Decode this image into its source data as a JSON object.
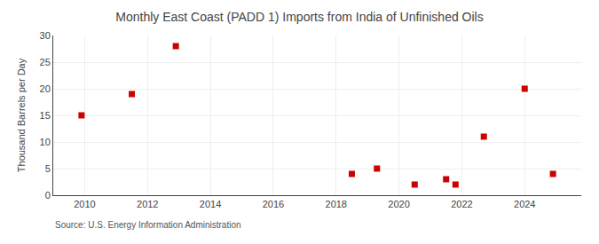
{
  "chart_data": {
    "type": "scatter",
    "title": "Monthly East Coast (PADD 1) Imports from India of Unfinished Oils",
    "ylabel": "Thousand Barrels per Day",
    "source": "Source: U.S. Energy Information Administration",
    "x": [
      2009.9,
      2011.5,
      2012.9,
      2018.5,
      2019.3,
      2020.5,
      2021.5,
      2021.8,
      2022.7,
      2024.0,
      2024.9
    ],
    "values": [
      15,
      19,
      28,
      4,
      5,
      2,
      3,
      2,
      11,
      20,
      4
    ],
    "color": "#cc0000",
    "marker": "square",
    "xlim": [
      2009.0,
      2025.8
    ],
    "ylim": [
      0,
      30
    ],
    "xticks": [
      2010,
      2012,
      2014,
      2016,
      2018,
      2020,
      2022,
      2024
    ],
    "yticks": [
      0,
      5,
      10,
      15,
      20,
      25,
      30
    ],
    "grid": true
  }
}
